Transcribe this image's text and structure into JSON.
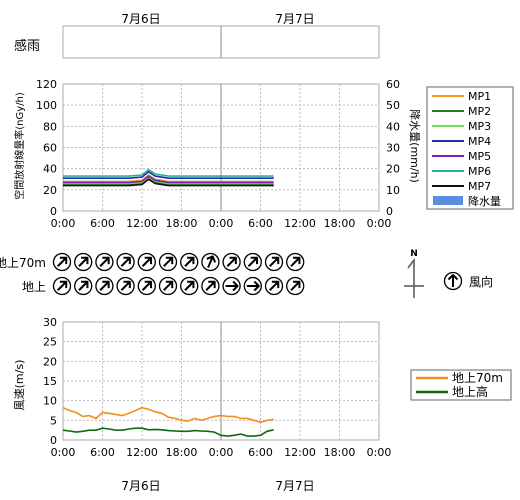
{
  "header": {
    "dates": [
      "7月6日",
      "7月7日"
    ]
  },
  "footer": {
    "dates": [
      "7月6日",
      "7月7日"
    ]
  },
  "sensor": {
    "label": "感雨"
  },
  "time_ticks": [
    "0:00",
    "6:00",
    "12:00",
    "18:00",
    "0:00",
    "6:00",
    "12:00",
    "18:00",
    "0:00"
  ],
  "chart_data": [
    {
      "type": "line",
      "ylabel_left": "空間放射線量率(nGy/h)",
      "ylabel_right": "降水量(mm/h)",
      "ylim": [
        0,
        120
      ],
      "ylim_right": [
        0,
        60
      ],
      "yticks_left": [
        "0",
        "20",
        "40",
        "60",
        "80",
        "100",
        "120"
      ],
      "yticks_right": [
        "0",
        "10",
        "20",
        "30",
        "40",
        "50",
        "60"
      ],
      "x_hours": [
        0,
        2,
        4,
        6,
        8,
        10,
        12,
        13,
        14,
        16,
        18,
        20,
        22,
        24,
        26,
        28,
        30,
        32
      ],
      "series": [
        {
          "name": "MP1",
          "color": "#f39c12",
          "values": [
            28,
            28,
            28,
            28,
            28,
            28,
            29,
            34,
            30,
            28,
            28,
            28,
            28,
            28,
            28,
            28,
            28,
            28
          ]
        },
        {
          "name": "MP2",
          "color": "#1e7b1e",
          "values": [
            25,
            25,
            25,
            25,
            25,
            25,
            26,
            31,
            27,
            25,
            25,
            25,
            25,
            25,
            25,
            25,
            25,
            25
          ]
        },
        {
          "name": "MP3",
          "color": "#6fdc5a",
          "values": [
            26,
            26,
            26,
            26,
            26,
            26,
            27,
            32,
            28,
            26,
            26,
            26,
            26,
            26,
            26,
            26,
            26,
            26
          ]
        },
        {
          "name": "MP4",
          "color": "#1c2db8",
          "values": [
            31,
            31,
            31,
            31,
            31,
            31,
            32,
            37,
            33,
            31,
            31,
            31,
            31,
            31,
            31,
            31,
            31,
            31
          ]
        },
        {
          "name": "MP5",
          "color": "#7a1fbf",
          "values": [
            27,
            27,
            27,
            27,
            27,
            27,
            28,
            33,
            29,
            27,
            27,
            27,
            27,
            27,
            27,
            27,
            27,
            27
          ]
        },
        {
          "name": "MP6",
          "color": "#2ab09a",
          "values": [
            33,
            33,
            33,
            33,
            33,
            33,
            34,
            39,
            35,
            33,
            33,
            33,
            33,
            33,
            33,
            33,
            33,
            33
          ]
        },
        {
          "name": "MP7",
          "color": "#111111",
          "values": [
            24,
            24,
            24,
            24,
            24,
            24,
            25,
            30,
            26,
            24,
            24,
            24,
            24,
            24,
            24,
            24,
            24,
            24
          ]
        }
      ],
      "bar_series": {
        "name": "降水量",
        "color": "#5b8ee0",
        "values": []
      },
      "grid": true,
      "legend": "right"
    },
    {
      "type": "line",
      "ylabel": "風速(m/s)",
      "ylim": [
        0,
        30
      ],
      "yticks": [
        "0",
        "5",
        "10",
        "15",
        "20",
        "25",
        "30"
      ],
      "x_hours": [
        0,
        1,
        2,
        3,
        4,
        5,
        6,
        7,
        8,
        9,
        10,
        11,
        12,
        13,
        14,
        15,
        16,
        17,
        18,
        19,
        20,
        21,
        22,
        23,
        24,
        25,
        26,
        27,
        28,
        29,
        30,
        31,
        32
      ],
      "series": [
        {
          "name": "地上70m",
          "color": "#f0901a",
          "values": [
            8.2,
            7.5,
            7.0,
            6.0,
            6.2,
            5.5,
            7.0,
            6.8,
            6.5,
            6.2,
            6.8,
            7.5,
            8.2,
            7.8,
            7.2,
            6.8,
            5.8,
            5.5,
            5.0,
            4.8,
            5.5,
            5.0,
            5.5,
            6.0,
            6.2,
            6.0,
            6.0,
            5.5,
            5.5,
            5.0,
            4.5,
            5.0,
            5.2
          ]
        },
        {
          "name": "地上高",
          "color": "#0f6b0f",
          "values": [
            2.5,
            2.3,
            2.0,
            2.2,
            2.5,
            2.5,
            3.0,
            2.8,
            2.5,
            2.5,
            2.8,
            3.0,
            3.0,
            2.6,
            2.7,
            2.6,
            2.4,
            2.3,
            2.2,
            2.2,
            2.4,
            2.3,
            2.2,
            2.0,
            1.2,
            1.0,
            1.2,
            1.5,
            1.0,
            1.0,
            1.2,
            2.2,
            2.6
          ]
        }
      ],
      "grid": true,
      "legend": "right"
    }
  ],
  "wind_direction": {
    "rows": [
      {
        "label": "地上70m",
        "arrows": [
          "NE",
          "NE",
          "NE",
          "NE",
          "NE",
          "NE",
          "NE",
          "NNE",
          "NE",
          "NE",
          "NE",
          "NE"
        ]
      },
      {
        "label": "地上",
        "arrows": [
          "NE",
          "NE",
          "NE",
          "NE",
          "NE",
          "NE",
          "NE",
          "NE",
          "E",
          "E",
          "NE",
          "NE"
        ]
      }
    ],
    "compass_label": "N",
    "legend_label": "風向"
  }
}
